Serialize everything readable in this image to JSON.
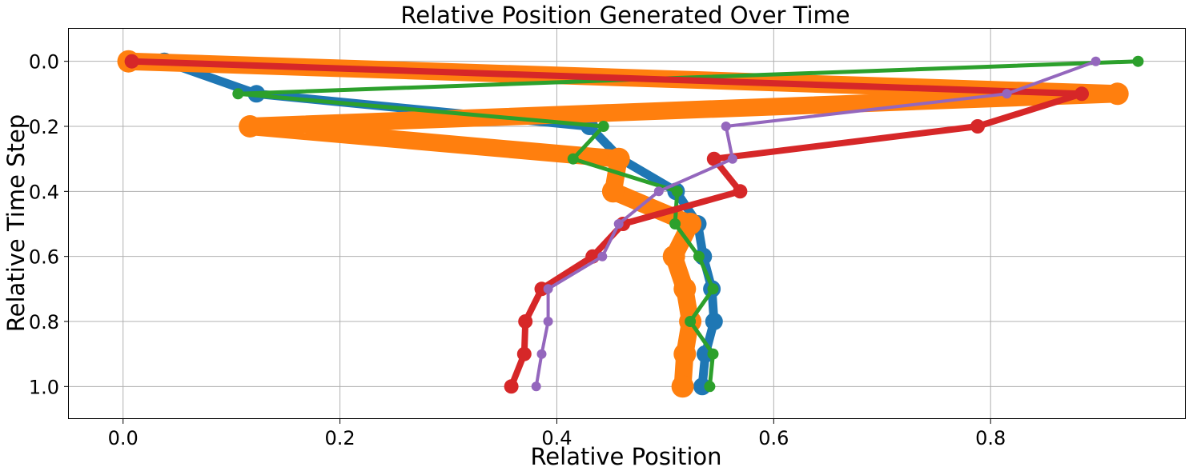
{
  "chart_data": {
    "type": "line",
    "title": "Relative Position Generated Over Time",
    "xlabel": "Relative Position",
    "ylabel": "Relative Time Step",
    "xlim": [
      -0.05,
      0.98
    ],
    "ylim": [
      1.1,
      -0.1
    ],
    "y_inverted": true,
    "grid": true,
    "xticks": [
      0.0,
      0.2,
      0.4,
      0.6,
      0.8
    ],
    "xtick_labels": [
      "0.0",
      "0.2",
      "0.4",
      "0.6",
      "0.8"
    ],
    "yticks": [
      0.0,
      0.2,
      0.4,
      0.6,
      0.8,
      1.0
    ],
    "ytick_labels": [
      "0.0",
      "0.2",
      "0.4",
      "0.6",
      "0.8",
      "1.0"
    ],
    "series": [
      {
        "color": "#1f77b4",
        "line_weight": 11,
        "marker_weight": 11,
        "x": [
          0.038,
          0.123,
          0.43,
          0.459,
          0.51,
          0.53,
          0.535,
          0.543,
          0.545,
          0.537,
          0.534
        ],
        "y": [
          0.0,
          0.1,
          0.2,
          0.3,
          0.4,
          0.5,
          0.6,
          0.7,
          0.8,
          0.9,
          1.0
        ]
      },
      {
        "color": "#ff7f0e",
        "line_weight": 22,
        "marker_weight": 14,
        "x": [
          0.005,
          0.917,
          0.117,
          0.457,
          0.452,
          0.523,
          0.508,
          0.518,
          0.523,
          0.518,
          0.516
        ],
        "y": [
          0.0,
          0.1,
          0.2,
          0.3,
          0.4,
          0.5,
          0.6,
          0.7,
          0.8,
          0.9,
          1.0
        ]
      },
      {
        "color": "#2ca02c",
        "line_weight": 5,
        "marker_weight": 7,
        "x": [
          0.936,
          0.106,
          0.443,
          0.415,
          0.511,
          0.509,
          0.531,
          0.544,
          0.523,
          0.544,
          0.541
        ],
        "y": [
          0.0,
          0.1,
          0.2,
          0.3,
          0.4,
          0.5,
          0.6,
          0.7,
          0.8,
          0.9,
          1.0
        ]
      },
      {
        "color": "#d62728",
        "line_weight": 8,
        "marker_weight": 9,
        "x": [
          0.008,
          0.884,
          0.788,
          0.545,
          0.569,
          0.461,
          0.433,
          0.386,
          0.371,
          0.37,
          0.358
        ],
        "y": [
          0.0,
          0.1,
          0.2,
          0.3,
          0.4,
          0.5,
          0.6,
          0.7,
          0.8,
          0.9,
          1.0
        ]
      },
      {
        "color": "#9467bd",
        "line_weight": 4,
        "marker_weight": 6,
        "x": [
          0.897,
          0.815,
          0.556,
          0.562,
          0.494,
          0.457,
          0.442,
          0.392,
          0.392,
          0.386,
          0.381
        ],
        "y": [
          0.0,
          0.1,
          0.2,
          0.3,
          0.4,
          0.5,
          0.6,
          0.7,
          0.8,
          0.9,
          1.0
        ]
      }
    ]
  }
}
